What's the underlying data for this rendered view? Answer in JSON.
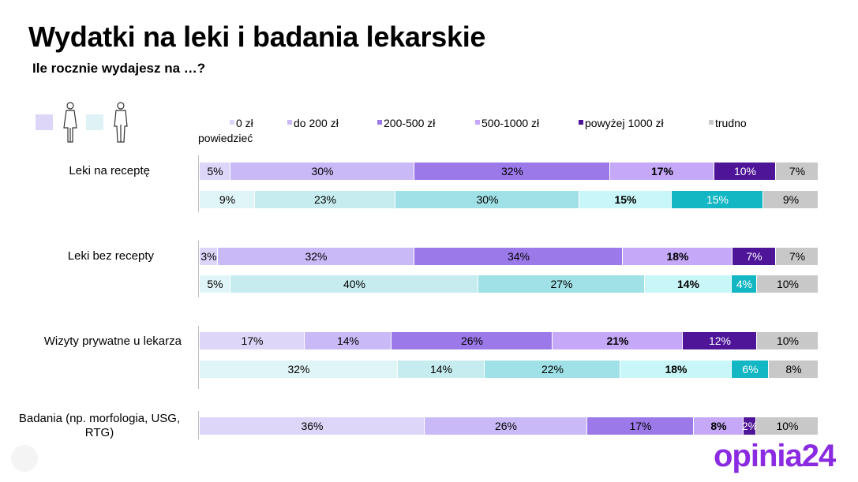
{
  "title": "Wydatki na leki i badania lekarskie",
  "subtitle": "Ile rocznie wydajesz na …?",
  "gender_legend": [
    {
      "icon": "female-person-icon",
      "color": "#ddd6f8"
    },
    {
      "icon": "male-person-icon",
      "color": "#dff3f6"
    }
  ],
  "logo": {
    "text": "opinia24",
    "color": "#8a2be2"
  },
  "chart_data": {
    "type": "bar",
    "orientation": "horizontal",
    "stacked": true,
    "legend_placement": "top",
    "legend": [
      "0 zł",
      "do 200 zł",
      "200-500 zł",
      "500-1000 zł",
      "powyżej 1000 zł",
      "trudno powiedzieć"
    ],
    "female_colors": [
      "#ddd6f8",
      "#c9b9f6",
      "#9c79e8",
      "#c5a8f7",
      "#4e1598",
      "#c8c8c8"
    ],
    "male_colors": [
      "#e0f5f7",
      "#c6ecef",
      "#9fe1e6",
      "#c9f6f8",
      "#13b7c4",
      "#c8c8c8"
    ],
    "legend_marker_colors": [
      "#ddd6f8",
      "#c9b9f6",
      "#9c79e8",
      "#c5a8f7",
      "#4e1598",
      "#c8c8c8"
    ],
    "categories": [
      {
        "label": "Leki na receptę",
        "female": {
          "values": [
            5,
            30,
            32,
            17,
            10,
            7
          ],
          "labels": [
            "5%",
            "30%",
            "32%",
            "17%",
            "10%",
            "7%"
          ]
        },
        "male": {
          "values": [
            9,
            23,
            30,
            15,
            15,
            9
          ],
          "labels": [
            "9%",
            "23%",
            "30%",
            "15%",
            "15%",
            "9%"
          ]
        }
      },
      {
        "label": "Leki bez recepty",
        "female": {
          "values": [
            3,
            32,
            34,
            18,
            7,
            7
          ],
          "labels": [
            "3%",
            "32%",
            "34%",
            "18%",
            "7%",
            "7%"
          ]
        },
        "male": {
          "values": [
            5,
            40,
            27,
            14,
            4,
            10
          ],
          "labels": [
            "5%",
            "40%",
            "27%",
            "14%",
            "4%",
            "10%"
          ]
        }
      },
      {
        "label": "Wizyty prywatne u lekarza",
        "female": {
          "values": [
            17,
            14,
            26,
            21,
            12,
            10
          ],
          "labels": [
            "17%",
            "14%",
            "26%",
            "21%",
            "12%",
            "10%"
          ]
        },
        "male": {
          "values": [
            32,
            14,
            22,
            18,
            6,
            8
          ],
          "labels": [
            "32%",
            "14%",
            "22%",
            "18%",
            "6%",
            "8%"
          ]
        }
      },
      {
        "label": "Badania (np. morfologia, USG, RTG)",
        "female": {
          "values": [
            36,
            26,
            17,
            8,
            2,
            10
          ],
          "labels": [
            "36%",
            "26%",
            "17%",
            "8%",
            "2%",
            "10%"
          ]
        },
        "male": null
      }
    ]
  }
}
